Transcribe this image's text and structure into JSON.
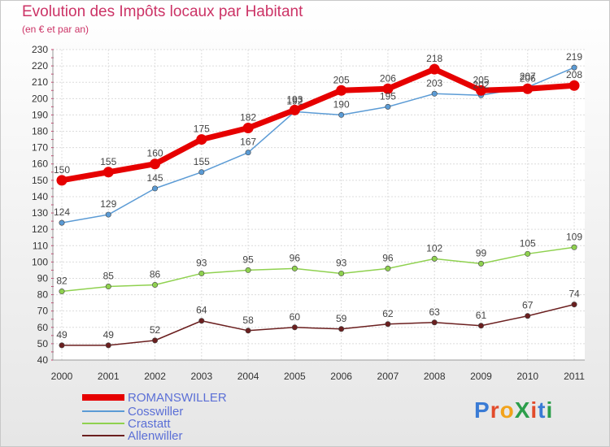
{
  "header": {
    "title": "Evolution des Impôts locaux par Habitant",
    "subtitle": "(en € et par an)"
  },
  "logo": {
    "text": "ProXiti",
    "colors": [
      "#3a7bd5",
      "#e24b2b",
      "#f2a31b",
      "#2c9e4b",
      "#e24b2b",
      "#3a7bd5",
      "#2c9e4b"
    ]
  },
  "chart_data": {
    "type": "line",
    "x": [
      "2000",
      "2001",
      "2002",
      "2003",
      "2004",
      "2005",
      "2006",
      "2007",
      "2008",
      "2009",
      "2010",
      "2011"
    ],
    "ylim": [
      40,
      230
    ],
    "yticks": [
      40,
      50,
      60,
      70,
      80,
      90,
      100,
      110,
      120,
      130,
      140,
      150,
      160,
      170,
      180,
      190,
      200,
      210,
      220,
      230
    ],
    "grid": true,
    "legend_position": "bottom-left",
    "series": [
      {
        "name": "ROMANSWILLER",
        "color": "#e60000",
        "values": [
          150,
          155,
          160,
          175,
          182,
          193,
          205,
          206,
          218,
          205,
          206,
          208
        ]
      },
      {
        "name": "Cosswiller",
        "color": "#5b9bd5",
        "values": [
          124,
          129,
          145,
          155,
          167,
          192,
          190,
          195,
          203,
          202,
          207,
          219
        ]
      },
      {
        "name": "Crastatt",
        "color": "#8fd14f",
        "values": [
          82,
          85,
          86,
          93,
          95,
          96,
          93,
          96,
          102,
          99,
          105,
          109
        ]
      },
      {
        "name": "Allenwiller",
        "color": "#6b1f1f",
        "values": [
          49,
          49,
          52,
          64,
          58,
          60,
          59,
          62,
          63,
          61,
          67,
          74
        ]
      }
    ]
  }
}
